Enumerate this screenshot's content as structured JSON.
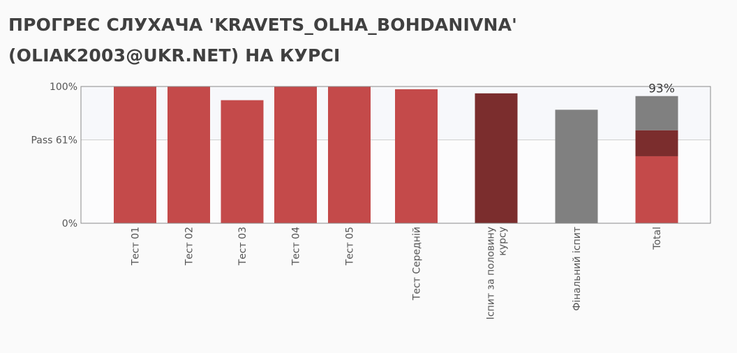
{
  "page": {
    "title": "ПРОГРЕС СЛУХАЧА 'KRAVETS_OLHA_BOHDANIVNA' (OLIAK2003@UKR.NET) НА КУРСІ"
  },
  "chart_data": {
    "type": "bar",
    "title": "",
    "xlabel": "",
    "ylabel": "",
    "ylim": [
      0,
      100
    ],
    "grid": false,
    "colors": {
      "test": "#c44a4a",
      "midterm": "#7b2d2d",
      "final": "#808080",
      "plot_bg": "#f7f8fb",
      "plot_border": "#8a8a8a",
      "pass_line": "#cfcfcf"
    },
    "y_ticks": [
      {
        "value": 100,
        "label": "100%"
      },
      {
        "value": 61,
        "label": "Pass 61%"
      },
      {
        "value": 0,
        "label": "0%"
      }
    ],
    "pass_threshold": 61,
    "bars": [
      {
        "label": "Тест 01",
        "value": 100,
        "kind": "test"
      },
      {
        "label": "Тест 02",
        "value": 100,
        "kind": "test"
      },
      {
        "label": "Тест 03",
        "value": 90,
        "kind": "test"
      },
      {
        "label": "Тест 04",
        "value": 100,
        "kind": "test"
      },
      {
        "label": "Тест 05",
        "value": 100,
        "kind": "test"
      },
      {
        "label": "Тест Середній",
        "value": 98,
        "kind": "test"
      },
      {
        "label": "Іспит за половину курсу",
        "value": 95,
        "kind": "midterm"
      },
      {
        "label": "Фінальний іспит",
        "value": 83,
        "kind": "final"
      }
    ],
    "total": {
      "label": "Total",
      "value_label": "93%",
      "segments": [
        {
          "value": 49,
          "kind": "test"
        },
        {
          "value": 19,
          "kind": "midterm"
        },
        {
          "value": 25,
          "kind": "final"
        }
      ]
    }
  }
}
